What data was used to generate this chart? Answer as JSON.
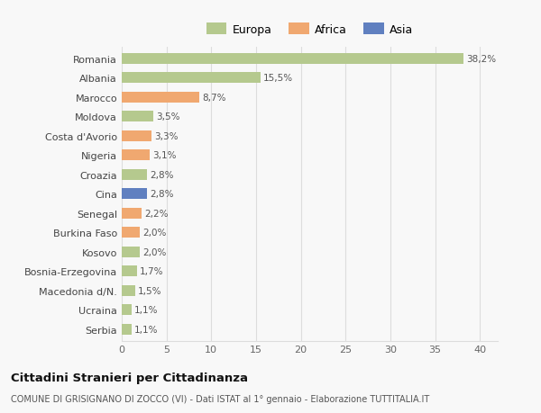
{
  "categories": [
    "Romania",
    "Albania",
    "Marocco",
    "Moldova",
    "Costa d'Avorio",
    "Nigeria",
    "Croazia",
    "Cina",
    "Senegal",
    "Burkina Faso",
    "Kosovo",
    "Bosnia-Erzegovina",
    "Macedonia d/N.",
    "Ucraina",
    "Serbia"
  ],
  "values": [
    38.2,
    15.5,
    8.7,
    3.5,
    3.3,
    3.1,
    2.8,
    2.8,
    2.2,
    2.0,
    2.0,
    1.7,
    1.5,
    1.1,
    1.1
  ],
  "labels": [
    "38,2%",
    "15,5%",
    "8,7%",
    "3,5%",
    "3,3%",
    "3,1%",
    "2,8%",
    "2,8%",
    "2,2%",
    "2,0%",
    "2,0%",
    "1,7%",
    "1,5%",
    "1,1%",
    "1,1%"
  ],
  "continent": [
    "Europa",
    "Europa",
    "Africa",
    "Europa",
    "Africa",
    "Africa",
    "Europa",
    "Asia",
    "Africa",
    "Africa",
    "Europa",
    "Europa",
    "Europa",
    "Europa",
    "Europa"
  ],
  "colors": {
    "Europa": "#b5c98e",
    "Africa": "#f0a870",
    "Asia": "#6080c0"
  },
  "legend_labels": [
    "Europa",
    "Africa",
    "Asia"
  ],
  "legend_colors": [
    "#b5c98e",
    "#f0a870",
    "#6080c0"
  ],
  "title": "Cittadini Stranieri per Cittadinanza",
  "subtitle": "COMUNE DI GRISIGNANO DI ZOCCO (VI) - Dati ISTAT al 1° gennaio - Elaborazione TUTTITALIA.IT",
  "xlim": [
    0,
    42
  ],
  "xticks": [
    0,
    5,
    10,
    15,
    20,
    25,
    30,
    35,
    40
  ],
  "background_color": "#f8f8f8",
  "plot_background": "#f8f8f8",
  "grid_color": "#dddddd"
}
